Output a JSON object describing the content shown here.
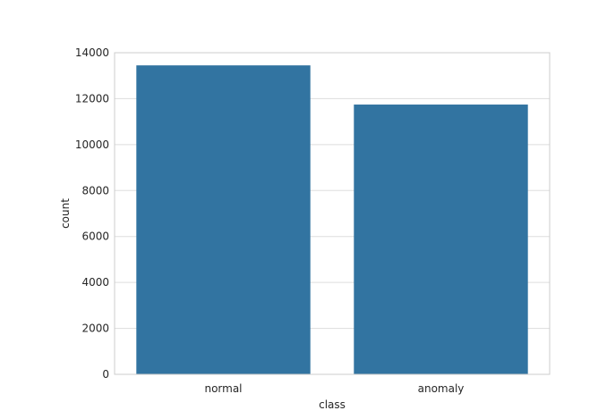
{
  "chart_data": {
    "type": "bar",
    "categories": [
      "normal",
      "anomaly"
    ],
    "values": [
      13449,
      11743
    ],
    "xlabel": "class",
    "ylabel": "count",
    "ylim": [
      0,
      14000
    ],
    "yticks": [
      0,
      2000,
      4000,
      6000,
      8000,
      10000,
      12000,
      14000
    ],
    "grid": true,
    "bar_color": "#3274a1",
    "grid_color": "#dddddd",
    "spine_color": "#cccccc"
  }
}
